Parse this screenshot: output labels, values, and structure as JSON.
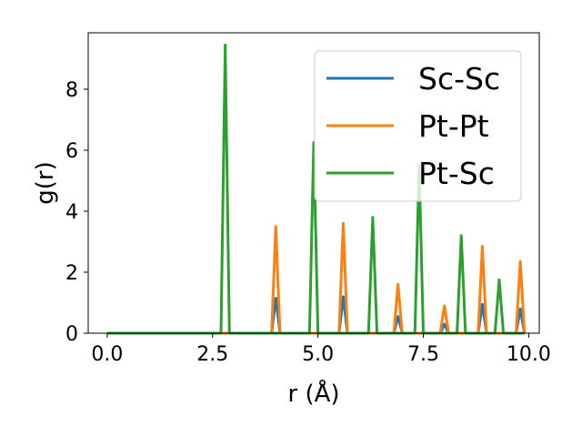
{
  "chart_data": {
    "type": "line",
    "xlabel": "r (Å)",
    "ylabel": "g(r)",
    "xlim": [
      -0.45,
      10.25
    ],
    "ylim": [
      0,
      9.85
    ],
    "xticks": [
      0.0,
      2.5,
      5.0,
      7.5,
      10.0
    ],
    "xtick_labels": [
      "0.0",
      "2.5",
      "5.0",
      "7.5",
      "10.0"
    ],
    "yticks": [
      0,
      2,
      4,
      6,
      8
    ],
    "ytick_labels": [
      "0",
      "2",
      "4",
      "6",
      "8"
    ],
    "grid": false,
    "legend_position": "top-right",
    "series": [
      {
        "name": "Sc-Sc",
        "color": "#1f77b4",
        "x": [
          0.0,
          3.9,
          4.0,
          4.1,
          5.5,
          5.6,
          5.7,
          6.8,
          6.9,
          7.0,
          7.9,
          8.0,
          8.1,
          8.8,
          8.9,
          9.0,
          9.7,
          9.8,
          9.9
        ],
        "y": [
          0,
          0,
          1.15,
          0,
          0,
          1.2,
          0,
          0,
          0.55,
          0,
          0,
          0.3,
          0,
          0,
          0.95,
          0,
          0,
          0.8,
          0
        ]
      },
      {
        "name": "Pt-Pt",
        "color": "#ff7f0e",
        "x": [
          0.0,
          3.9,
          4.0,
          4.1,
          5.5,
          5.6,
          5.7,
          6.8,
          6.9,
          7.0,
          7.9,
          8.0,
          8.1,
          8.8,
          8.9,
          9.0,
          9.7,
          9.8,
          9.9
        ],
        "y": [
          0,
          0,
          3.5,
          0,
          0,
          3.6,
          0,
          0,
          1.6,
          0,
          0,
          0.9,
          0,
          0,
          2.85,
          0,
          0,
          2.35,
          0
        ]
      },
      {
        "name": "Pt-Sc",
        "color": "#2ca02c",
        "x": [
          0.0,
          2.7,
          2.8,
          2.9,
          4.8,
          4.9,
          5.0,
          6.2,
          6.3,
          6.4,
          7.3,
          7.4,
          7.5,
          8.3,
          8.4,
          8.5,
          9.2,
          9.3,
          9.4,
          9.9
        ],
        "y": [
          0,
          0,
          9.45,
          0,
          0,
          6.25,
          0,
          0,
          3.8,
          0,
          0,
          5.5,
          0,
          0,
          3.2,
          0,
          0,
          1.75,
          0,
          0
        ]
      }
    ]
  }
}
